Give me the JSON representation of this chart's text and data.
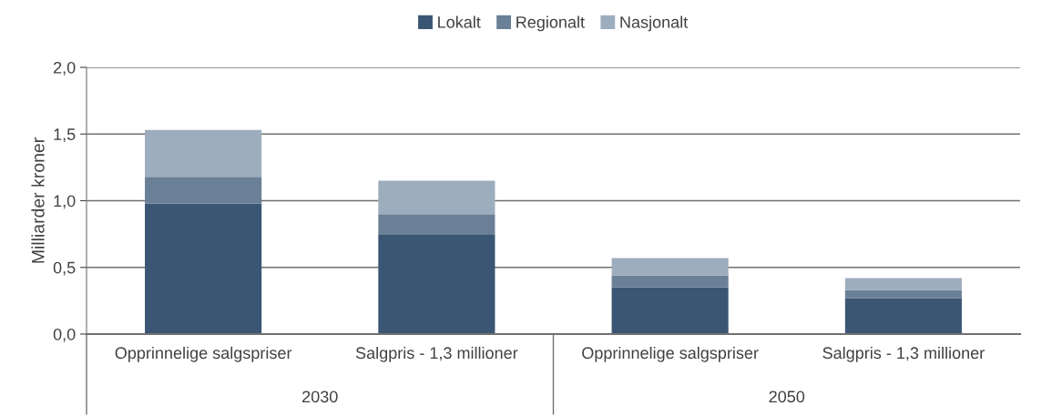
{
  "chart_data": {
    "type": "bar",
    "stacked": true,
    "ylabel": "Milliarder kroner",
    "categories": [
      "Opprinnelige salgspriser",
      "Salgpris - 1,3 millioner",
      "Opprinnelige salgspriser",
      "Salgpris - 1,3 millioner"
    ],
    "series": [
      {
        "name": "Lokalt",
        "color": "#3a5674",
        "values": [
          0.98,
          0.75,
          0.35,
          0.27
        ]
      },
      {
        "name": "Regionalt",
        "color": "#6a8097",
        "values": [
          0.2,
          0.15,
          0.09,
          0.06
        ]
      },
      {
        "name": "Nasjonalt",
        "color": "#9eadbd",
        "values": [
          0.35,
          0.25,
          0.13,
          0.09
        ]
      }
    ],
    "ylim": [
      0,
      2.0
    ],
    "yticks": [
      {
        "value": 0,
        "label": "0,0"
      },
      {
        "value": 0.5,
        "label": "0,5"
      },
      {
        "value": 1.0,
        "label": "1,0"
      },
      {
        "value": 1.5,
        "label": "1,5"
      },
      {
        "value": 2.0,
        "label": "2,0"
      }
    ],
    "grid": "y",
    "legend": "top",
    "annotations": [
      "2030",
      "2050"
    ]
  }
}
